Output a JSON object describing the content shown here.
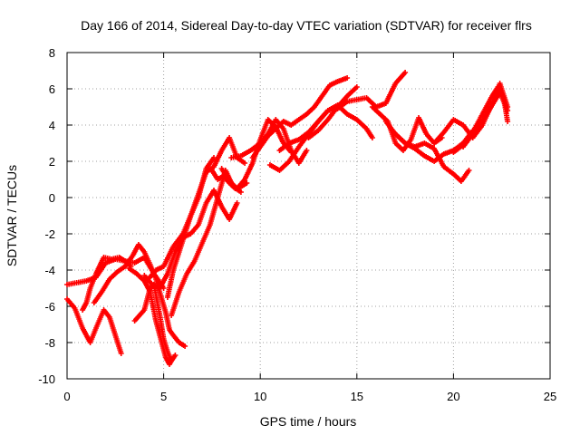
{
  "chart_data": {
    "type": "scatter",
    "title": "Day 166 of 2014, Sidereal Day-to-day VTEC variation (SDTVAR) for receiver flrs",
    "xlabel": "GPS time / hours",
    "ylabel": "SDTVAR / TECUs",
    "xlim": [
      0,
      25
    ],
    "ylim": [
      -10,
      8
    ],
    "xticks": [
      "0",
      "5",
      "10",
      "15",
      "20",
      "25"
    ],
    "yticks": [
      "-10",
      "-8",
      "-6",
      "-4",
      "-2",
      "0",
      "2",
      "4",
      "6",
      "8"
    ],
    "grid": true,
    "marker": "+",
    "color": "#ff0000",
    "series": [
      {
        "x": [
          0.0,
          0.5,
          1.0,
          1.5,
          2.0,
          2.5,
          3.0,
          3.5,
          4.0,
          4.5,
          5.0
        ],
        "y": [
          -4.8,
          -4.7,
          -4.6,
          -4.4,
          -3.6,
          -3.4,
          -3.5,
          -3.6,
          -3.3,
          -4.2,
          -5.0
        ]
      },
      {
        "x": [
          0.0,
          0.4,
          0.8,
          1.2,
          1.5,
          1.9,
          2.2,
          2.5,
          2.8
        ],
        "y": [
          -5.6,
          -6.1,
          -7.2,
          -8.0,
          -7.2,
          -6.2,
          -6.6,
          -7.6,
          -8.6
        ]
      },
      {
        "x": [
          0.8,
          1.0,
          1.2,
          1.5,
          1.9,
          2.3,
          2.7,
          3.0,
          3.3
        ],
        "y": [
          -6.2,
          -5.8,
          -5.0,
          -4.2,
          -3.3,
          -3.4,
          -3.3,
          -3.5,
          -3.8
        ]
      },
      {
        "x": [
          1.4,
          1.8,
          2.2,
          2.6,
          3.0,
          3.4,
          3.7,
          4.0,
          4.3,
          4.6,
          4.9,
          5.1,
          5.3,
          5.5,
          5.8,
          6.1
        ],
        "y": [
          -5.8,
          -5.2,
          -4.5,
          -4.1,
          -3.8,
          -3.2,
          -2.6,
          -3.0,
          -3.7,
          -4.5,
          -5.6,
          -6.3,
          -7.3,
          -7.6,
          -8.0,
          -8.2
        ]
      },
      {
        "x": [
          3.5,
          4.0,
          4.3,
          4.5,
          4.8,
          5.0,
          5.2,
          5.4,
          5.6
        ],
        "y": [
          -6.8,
          -6.2,
          -5.0,
          -4.8,
          -6.5,
          -7.8,
          -8.5,
          -9.0,
          -8.7
        ]
      },
      {
        "x": [
          3.2,
          3.6,
          4.0,
          4.3,
          4.6,
          4.9,
          5.1,
          5.3,
          5.5
        ],
        "y": [
          -3.9,
          -4.2,
          -4.6,
          -5.2,
          -6.8,
          -8.0,
          -8.8,
          -9.2,
          -8.8
        ]
      },
      {
        "x": [
          4.0,
          4.4,
          4.8,
          5.2,
          5.6,
          6.0,
          6.4,
          6.8,
          7.2,
          7.6,
          8.0,
          8.4,
          8.8
        ],
        "y": [
          -4.3,
          -4.8,
          -5.0,
          -4.2,
          -3.0,
          -2.2,
          -2.0,
          -1.5,
          -0.3,
          0.4,
          -0.5,
          -1.2,
          -0.3
        ]
      },
      {
        "x": [
          4.2,
          4.6,
          5.0,
          5.5,
          6.0,
          6.4,
          6.8,
          7.2,
          7.6
        ],
        "y": [
          -4.5,
          -4.0,
          -3.8,
          -2.7,
          -2.0,
          -1.0,
          0.0,
          1.6,
          2.2
        ]
      },
      {
        "x": [
          5.2,
          5.5,
          5.8,
          6.1,
          6.4,
          6.8,
          7.2,
          7.6,
          8.0,
          8.4,
          8.8,
          9.2
        ],
        "y": [
          -5.5,
          -4.0,
          -3.0,
          -2.0,
          -1.0,
          0.2,
          1.4,
          1.7,
          2.6,
          3.3,
          2.2,
          1.9
        ]
      },
      {
        "x": [
          5.4,
          5.8,
          6.2,
          6.6,
          7.0,
          7.4,
          7.8,
          8.2,
          8.6,
          9.0
        ],
        "y": [
          -6.5,
          -5.2,
          -4.2,
          -3.5,
          -2.5,
          -1.5,
          0.0,
          1.5,
          0.6,
          0.3
        ]
      },
      {
        "x": [
          7.5,
          7.8,
          8.1,
          8.4,
          8.7,
          9.0,
          9.3
        ],
        "y": [
          1.5,
          1.0,
          1.2,
          0.8,
          0.5,
          0.6,
          0.8
        ]
      },
      {
        "x": [
          8.0,
          8.4,
          8.8,
          9.2,
          9.6,
          10.0,
          10.4,
          10.8,
          11.2,
          11.6
        ],
        "y": [
          1.6,
          0.9,
          0.5,
          1.0,
          1.9,
          3.2,
          4.3,
          3.9,
          3.0,
          2.5
        ]
      },
      {
        "x": [
          8.5,
          9.0,
          9.5,
          10.0,
          10.4,
          10.8,
          11.2,
          11.6,
          12.0,
          12.4
        ],
        "y": [
          2.2,
          2.3,
          2.6,
          3.0,
          3.5,
          4.3,
          3.8,
          2.6,
          1.9,
          2.6
        ]
      },
      {
        "x": [
          9.6,
          10.0,
          10.4,
          10.8,
          11.2,
          11.6,
          12.0,
          12.4,
          12.8,
          13.2,
          13.6,
          14.0,
          14.5
        ],
        "y": [
          2.2,
          2.8,
          3.4,
          3.8,
          4.2,
          4.0,
          4.3,
          4.6,
          5.0,
          5.6,
          6.2,
          6.4,
          6.6
        ]
      },
      {
        "x": [
          10.5,
          11.0,
          11.5,
          12.0,
          12.5,
          13.0,
          13.5,
          14.0,
          14.5,
          15.0,
          15.5,
          16.0,
          16.5,
          17.0,
          17.5
        ],
        "y": [
          1.8,
          1.5,
          2.0,
          2.8,
          3.5,
          4.2,
          4.8,
          4.9,
          5.3,
          5.4,
          5.5,
          5.0,
          5.2,
          6.3,
          6.9
        ]
      },
      {
        "x": [
          11.0,
          11.5,
          12.0,
          12.5,
          13.0,
          13.5,
          14.0,
          14.5,
          15.0,
          15.5,
          15.8
        ],
        "y": [
          2.6,
          3.0,
          3.2,
          3.6,
          4.2,
          4.8,
          5.1,
          4.6,
          4.3,
          3.8,
          3.3
        ]
      },
      {
        "x": [
          12.5,
          13.0,
          13.5,
          14.0,
          14.5,
          15.0
        ],
        "y": [
          3.3,
          3.7,
          4.3,
          5.0,
          5.6,
          6.1
        ]
      },
      {
        "x": [
          15.8,
          16.2,
          16.6,
          17.0,
          17.4,
          17.8,
          18.2,
          18.6,
          19.0,
          19.4
        ],
        "y": [
          5.0,
          4.6,
          4.2,
          3.0,
          2.6,
          3.2,
          4.4,
          3.5,
          3.0,
          3.3
        ]
      },
      {
        "x": [
          16.5,
          17.0,
          17.5,
          18.0,
          18.5,
          19.0,
          19.5,
          20.0,
          20.5,
          21.0
        ],
        "y": [
          4.2,
          3.5,
          3.0,
          2.7,
          2.3,
          2.0,
          2.4,
          2.6,
          3.0,
          3.7
        ]
      },
      {
        "x": [
          17.0,
          17.5,
          18.0,
          18.5,
          19.0,
          19.5,
          20.0,
          20.4,
          20.8
        ],
        "y": [
          3.5,
          3.0,
          2.8,
          3.0,
          2.7,
          1.7,
          1.3,
          0.9,
          1.5
        ]
      },
      {
        "x": [
          19.0,
          19.5,
          20.0,
          20.5,
          21.0,
          21.5,
          22.0,
          22.4,
          22.8
        ],
        "y": [
          3.0,
          3.6,
          4.3,
          4.0,
          3.3,
          4.0,
          5.2,
          6.3,
          5.0
        ]
      },
      {
        "x": [
          20.0,
          20.5,
          21.0,
          21.5,
          22.0,
          22.3,
          22.6,
          22.8
        ],
        "y": [
          2.5,
          2.9,
          3.6,
          4.6,
          5.6,
          6.1,
          5.5,
          4.2
        ]
      },
      {
        "x": [
          20.5,
          21.0,
          21.5,
          22.0,
          22.4,
          22.8
        ],
        "y": [
          2.8,
          3.5,
          4.2,
          5.1,
          5.8,
          4.8
        ]
      }
    ]
  }
}
